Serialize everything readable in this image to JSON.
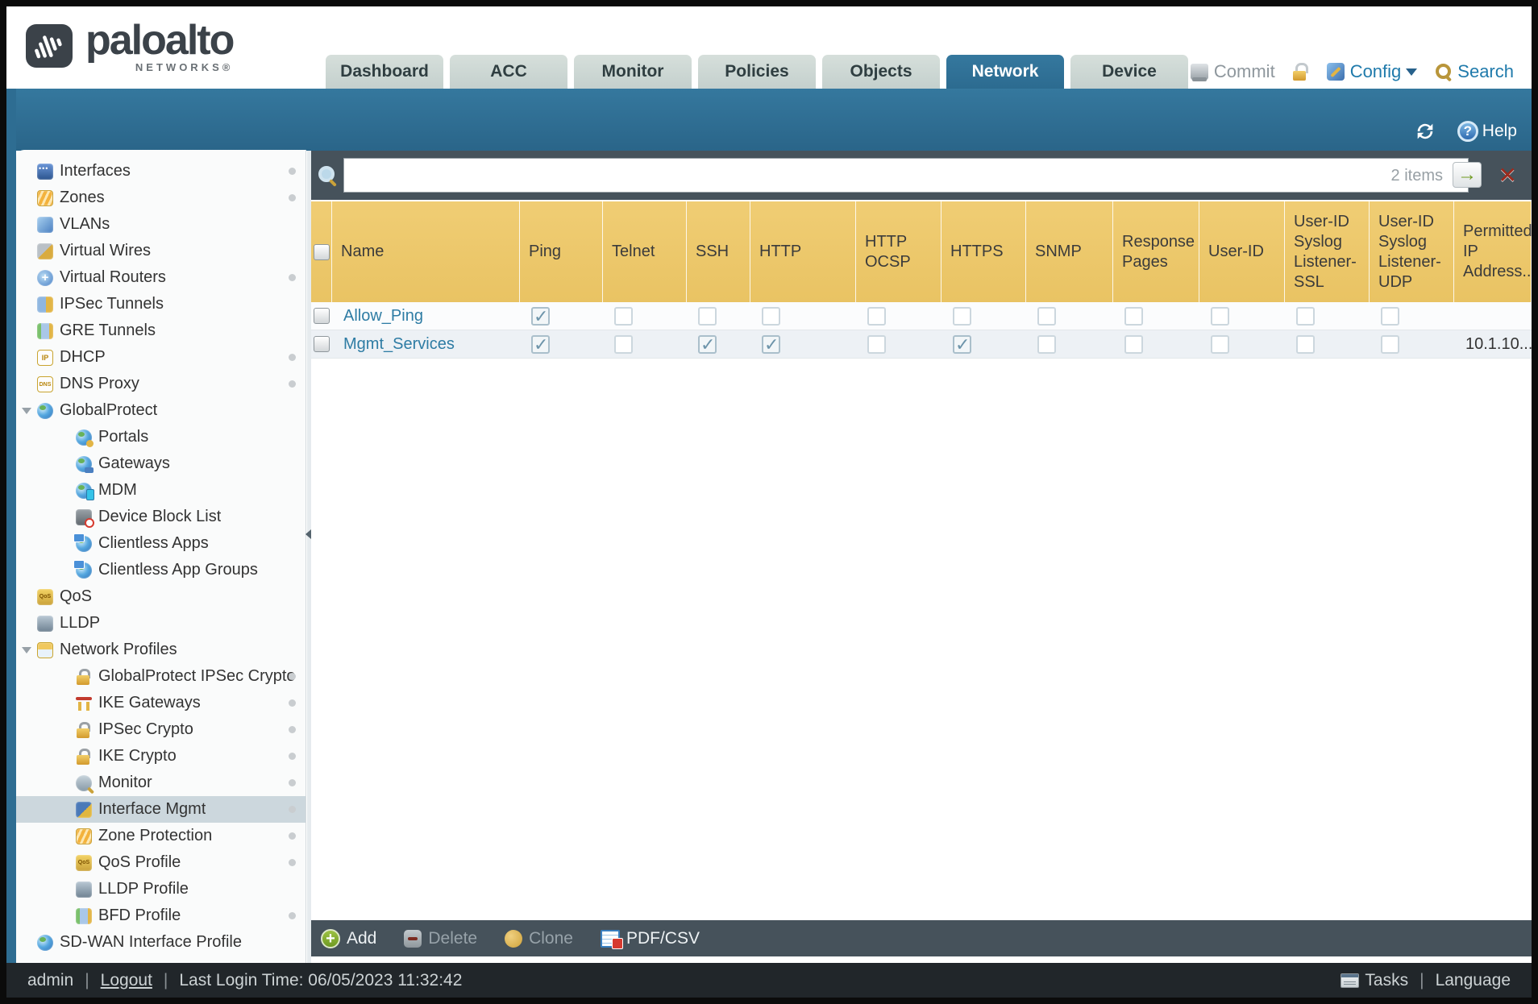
{
  "colors": {
    "banner": "#2e6d92",
    "table_header": "#edc76a",
    "toolbar_bar": "#46525b",
    "link": "#2e7ca4",
    "selected_item_bg": "#ccd7dd"
  },
  "header": {
    "brand": "paloalto",
    "brand_sub": "NETWORKS®",
    "tabs": [
      {
        "label": "Dashboard",
        "active": false
      },
      {
        "label": "ACC",
        "active": false
      },
      {
        "label": "Monitor",
        "active": false
      },
      {
        "label": "Policies",
        "active": false
      },
      {
        "label": "Objects",
        "active": false
      },
      {
        "label": "Network",
        "active": true
      },
      {
        "label": "Device",
        "active": false
      }
    ],
    "actions": {
      "commit": "Commit",
      "config": "Config",
      "search": "Search"
    }
  },
  "banner": {
    "help": "Help"
  },
  "sidebar": {
    "items": [
      {
        "label": "Interfaces",
        "level": 0,
        "icon": "interfaces",
        "dot": true
      },
      {
        "label": "Zones",
        "level": 0,
        "icon": "zones",
        "dot": true
      },
      {
        "label": "VLANs",
        "level": 0,
        "icon": "vlans"
      },
      {
        "label": "Virtual Wires",
        "level": 0,
        "icon": "virtual-wires"
      },
      {
        "label": "Virtual Routers",
        "level": 0,
        "icon": "virtual-routers",
        "dot": true
      },
      {
        "label": "IPSec Tunnels",
        "level": 0,
        "icon": "ipsec-tunnels"
      },
      {
        "label": "GRE Tunnels",
        "level": 0,
        "icon": "gre-tunnels"
      },
      {
        "label": "DHCP",
        "level": 0,
        "icon": "dhcp",
        "dot": true
      },
      {
        "label": "DNS Proxy",
        "level": 0,
        "icon": "dns-proxy",
        "dot": true
      },
      {
        "label": "GlobalProtect",
        "level": 0,
        "icon": "globalprotect globe",
        "expander": true
      },
      {
        "label": "Portals",
        "level": 1,
        "icon": "portals globe"
      },
      {
        "label": "Gateways",
        "level": 1,
        "icon": "gateways globe"
      },
      {
        "label": "MDM",
        "level": 1,
        "icon": "mdm globe"
      },
      {
        "label": "Device Block List",
        "level": 1,
        "icon": "device-block-list"
      },
      {
        "label": "Clientless Apps",
        "level": 1,
        "icon": "clientless-apps globe"
      },
      {
        "label": "Clientless App Groups",
        "level": 1,
        "icon": "clientless-app-groups globe"
      },
      {
        "label": "QoS",
        "level": 0,
        "icon": "qos"
      },
      {
        "label": "LLDP",
        "level": 0,
        "icon": "lldp"
      },
      {
        "label": "Network Profiles",
        "level": 0,
        "icon": "network-profiles",
        "expander": true
      },
      {
        "label": "GlobalProtect IPSec Crypto",
        "level": 1,
        "icon": "lock",
        "dot": true
      },
      {
        "label": "IKE Gateways",
        "level": 1,
        "icon": "ike-gateways",
        "dot": true
      },
      {
        "label": "IPSec Crypto",
        "level": 1,
        "icon": "lock",
        "dot": true
      },
      {
        "label": "IKE Crypto",
        "level": 1,
        "icon": "lock",
        "dot": true
      },
      {
        "label": "Monitor",
        "level": 1,
        "icon": "monitor",
        "dot": true
      },
      {
        "label": "Interface Mgmt",
        "level": 1,
        "icon": "interface-mgmt",
        "selected": true,
        "dot": true
      },
      {
        "label": "Zone Protection",
        "level": 1,
        "icon": "zone-protection",
        "dot": true
      },
      {
        "label": "QoS Profile",
        "level": 1,
        "icon": "qos-profile",
        "dot": true
      },
      {
        "label": "LLDP Profile",
        "level": 1,
        "icon": "lldp-profile"
      },
      {
        "label": "BFD Profile",
        "level": 1,
        "icon": "bfd-profile",
        "dot": true
      },
      {
        "label": "SD-WAN Interface Profile",
        "level": 0,
        "icon": "sdwan globe"
      }
    ]
  },
  "search_bar": {
    "value": "",
    "count": "2 items"
  },
  "table": {
    "columns": [
      {
        "key": "sel",
        "label": ""
      },
      {
        "key": "name",
        "label": "Name"
      },
      {
        "key": "ping",
        "label": "Ping"
      },
      {
        "key": "telnet",
        "label": "Telnet"
      },
      {
        "key": "ssh",
        "label": "SSH"
      },
      {
        "key": "http",
        "label": "HTTP"
      },
      {
        "key": "http_ocsp",
        "label": "HTTP OCSP"
      },
      {
        "key": "https",
        "label": "HTTPS"
      },
      {
        "key": "snmp",
        "label": "SNMP"
      },
      {
        "key": "response_pages",
        "label": "Response Pages"
      },
      {
        "key": "user_id",
        "label": "User-ID"
      },
      {
        "key": "user_id_syslog_ssl",
        "label": "User-ID Syslog Listener-SSL"
      },
      {
        "key": "user_id_syslog_udp",
        "label": "User-ID Syslog Listener-UDP"
      },
      {
        "key": "permitted_ip",
        "label": "Permitted IP Address..."
      }
    ],
    "rows": [
      {
        "name": "Allow_Ping",
        "checks": {
          "ping": true,
          "telnet": false,
          "ssh": false,
          "http": false,
          "http_ocsp": false,
          "https": false,
          "snmp": false,
          "response_pages": false,
          "user_id": false,
          "user_id_syslog_ssl": false,
          "user_id_syslog_udp": false
        },
        "permitted_ip": ""
      },
      {
        "name": "Mgmt_Services",
        "checks": {
          "ping": true,
          "telnet": false,
          "ssh": true,
          "http": true,
          "http_ocsp": false,
          "https": true,
          "snmp": false,
          "response_pages": false,
          "user_id": false,
          "user_id_syslog_ssl": false,
          "user_id_syslog_udp": false
        },
        "permitted_ip": "10.1.10..."
      }
    ]
  },
  "toolbar": {
    "add": "Add",
    "delete": "Delete",
    "clone": "Clone",
    "pdf_csv": "PDF/CSV"
  },
  "footer": {
    "user": "admin",
    "logout": "Logout",
    "last_login": "Last Login Time: 06/05/2023 11:32:42",
    "tasks": "Tasks",
    "language": "Language",
    "sep": "|"
  },
  "icons": {
    "go_arrow": "→",
    "clear_x": "✕",
    "help_q": "?",
    "add_plus": "+"
  }
}
